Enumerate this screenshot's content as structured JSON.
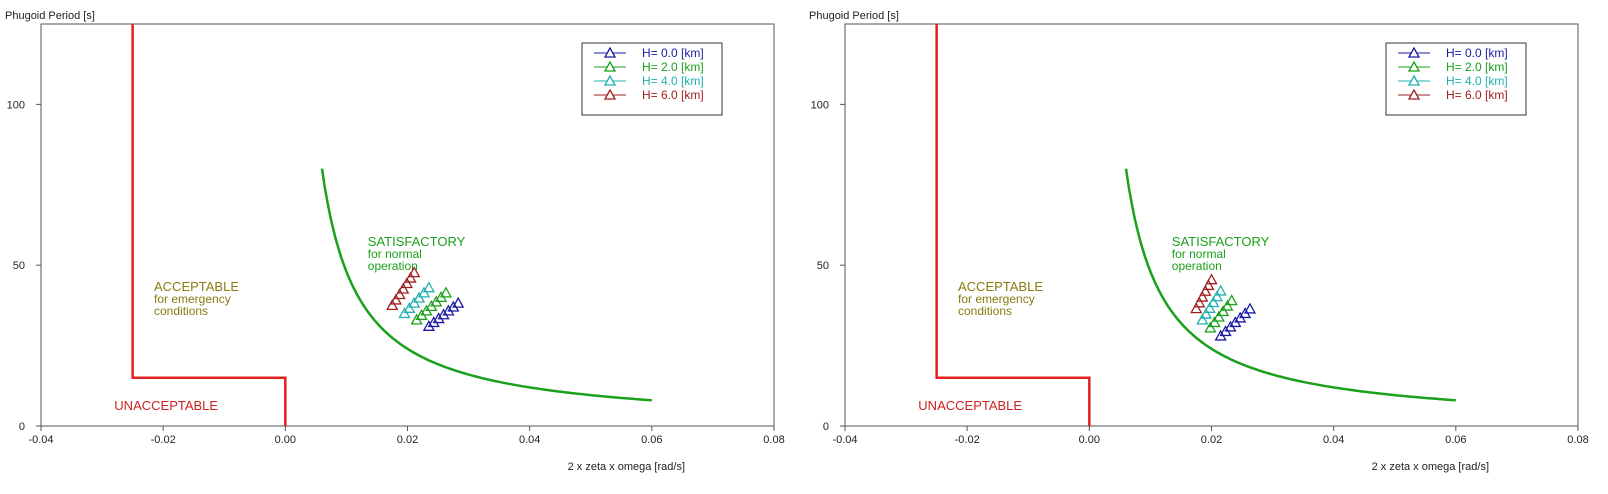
{
  "chart_data": [
    {
      "type": "scatter",
      "title": "",
      "ylabel": "Phugoid Period [s]",
      "xlabel": "2 x zeta x omega [rad/s]",
      "xlim": [
        -0.04,
        0.08
      ],
      "ylim": [
        0,
        125
      ],
      "x_ticks": [
        -0.04,
        -0.02,
        0.0,
        0.02,
        0.04,
        0.06,
        0.08
      ],
      "x_tick_labels": [
        "-0.04",
        "-0.02",
        "0.00",
        "0.02",
        "0.04",
        "0.06",
        "0.08"
      ],
      "y_ticks": [
        0,
        50,
        100
      ],
      "y_tick_labels": [
        "0",
        "50",
        "100"
      ],
      "grid": false,
      "legend_position": "top-right",
      "boundary_lines": {
        "unacceptable": {
          "color": "#e02020",
          "x": [
            -0.025,
            -0.025,
            0.0,
            0.0
          ],
          "y": [
            125,
            15,
            15,
            0
          ]
        },
        "satisfactory": {
          "color": "#1aa01a",
          "x_start": 0.006,
          "x_end": 0.06,
          "constant": 0.48
        }
      },
      "region_labels": [
        {
          "lines": [
            "UNACCEPTABLE"
          ],
          "color": "#cc2222",
          "x": -0.028,
          "y": 5
        },
        {
          "lines": [
            "ACCEPTABLE",
            "for emergency",
            "conditions"
          ],
          "color": "#8a7a10",
          "x": -0.0215,
          "y": 42
        },
        {
          "lines": [
            "SATISFACTORY",
            "for normal",
            "operation"
          ],
          "color": "#1aa01a",
          "x": 0.0135,
          "y": 56
        }
      ],
      "series": [
        {
          "name": "H= 0.0 [km]",
          "color": "#1a1aa0",
          "x": [
            0.0235,
            0.0243,
            0.0251,
            0.0259,
            0.0267,
            0.0275,
            0.0283
          ],
          "y": [
            31,
            32.2,
            33.4,
            34.6,
            35.8,
            37,
            38.2
          ]
        },
        {
          "name": "H= 2.0 [km]",
          "color": "#1aa01a",
          "x": [
            0.0215,
            0.0223,
            0.0231,
            0.0239,
            0.0247,
            0.0255,
            0.0263
          ],
          "y": [
            33,
            34.4,
            35.8,
            37.2,
            38.6,
            40,
            41.4
          ]
        },
        {
          "name": "H= 4.0 [km]",
          "color": "#20b0b0",
          "x": [
            0.0195,
            0.0203,
            0.0211,
            0.0219,
            0.0227,
            0.0235
          ],
          "y": [
            35,
            36.6,
            38.2,
            39.8,
            41.4,
            43
          ]
        },
        {
          "name": "H= 6.0 [km]",
          "color": "#a02020",
          "x": [
            0.0175,
            0.0181,
            0.0187,
            0.0193,
            0.0199,
            0.0205,
            0.0211
          ],
          "y": [
            37.5,
            39.2,
            40.9,
            42.6,
            44.3,
            46,
            47.7
          ]
        }
      ]
    },
    {
      "type": "scatter",
      "title": "",
      "ylabel": "Phugoid Period [s]",
      "xlabel": "2 x zeta x omega [rad/s]",
      "xlim": [
        -0.04,
        0.08
      ],
      "ylim": [
        0,
        125
      ],
      "x_ticks": [
        -0.04,
        -0.02,
        0.0,
        0.02,
        0.04,
        0.06,
        0.08
      ],
      "x_tick_labels": [
        "-0.04",
        "-0.02",
        "0.00",
        "0.02",
        "0.04",
        "0.06",
        "0.08"
      ],
      "y_ticks": [
        0,
        50,
        100
      ],
      "y_tick_labels": [
        "0",
        "50",
        "100"
      ],
      "grid": false,
      "legend_position": "top-right",
      "boundary_lines": {
        "unacceptable": {
          "color": "#e02020",
          "x": [
            -0.025,
            -0.025,
            0.0,
            0.0
          ],
          "y": [
            125,
            15,
            15,
            0
          ]
        },
        "satisfactory": {
          "color": "#1aa01a",
          "x_start": 0.006,
          "x_end": 0.06,
          "constant": 0.48
        }
      },
      "region_labels": [
        {
          "lines": [
            "UNACCEPTABLE"
          ],
          "color": "#cc2222",
          "x": -0.028,
          "y": 5
        },
        {
          "lines": [
            "ACCEPTABLE",
            "for emergency",
            "conditions"
          ],
          "color": "#8a7a10",
          "x": -0.0215,
          "y": 42
        },
        {
          "lines": [
            "SATISFACTORY",
            "for normal",
            "operation"
          ],
          "color": "#1aa01a",
          "x": 0.0135,
          "y": 56
        }
      ],
      "series": [
        {
          "name": "H= 0.0 [km]",
          "color": "#1a1aa0",
          "x": [
            0.0215,
            0.0223,
            0.0231,
            0.0239,
            0.0247,
            0.0255,
            0.0263
          ],
          "y": [
            28,
            29.4,
            30.8,
            32.2,
            33.6,
            35,
            36.4
          ]
        },
        {
          "name": "H= 2.0 [km]",
          "color": "#1aa01a",
          "x": [
            0.0198,
            0.0205,
            0.0212,
            0.0219,
            0.0226,
            0.0233
          ],
          "y": [
            30.5,
            32.2,
            33.9,
            35.6,
            37.3,
            39
          ]
        },
        {
          "name": "H= 4.0 [km]",
          "color": "#20b0b0",
          "x": [
            0.0185,
            0.0191,
            0.0197,
            0.0203,
            0.0209,
            0.0215
          ],
          "y": [
            33,
            34.8,
            36.6,
            38.4,
            40.2,
            42
          ]
        },
        {
          "name": "H= 6.0 [km]",
          "color": "#a02020",
          "x": [
            0.0175,
            0.018,
            0.0185,
            0.019,
            0.0195,
            0.02
          ],
          "y": [
            36.5,
            38.3,
            40.1,
            41.9,
            43.7,
            45.5
          ]
        }
      ]
    }
  ]
}
